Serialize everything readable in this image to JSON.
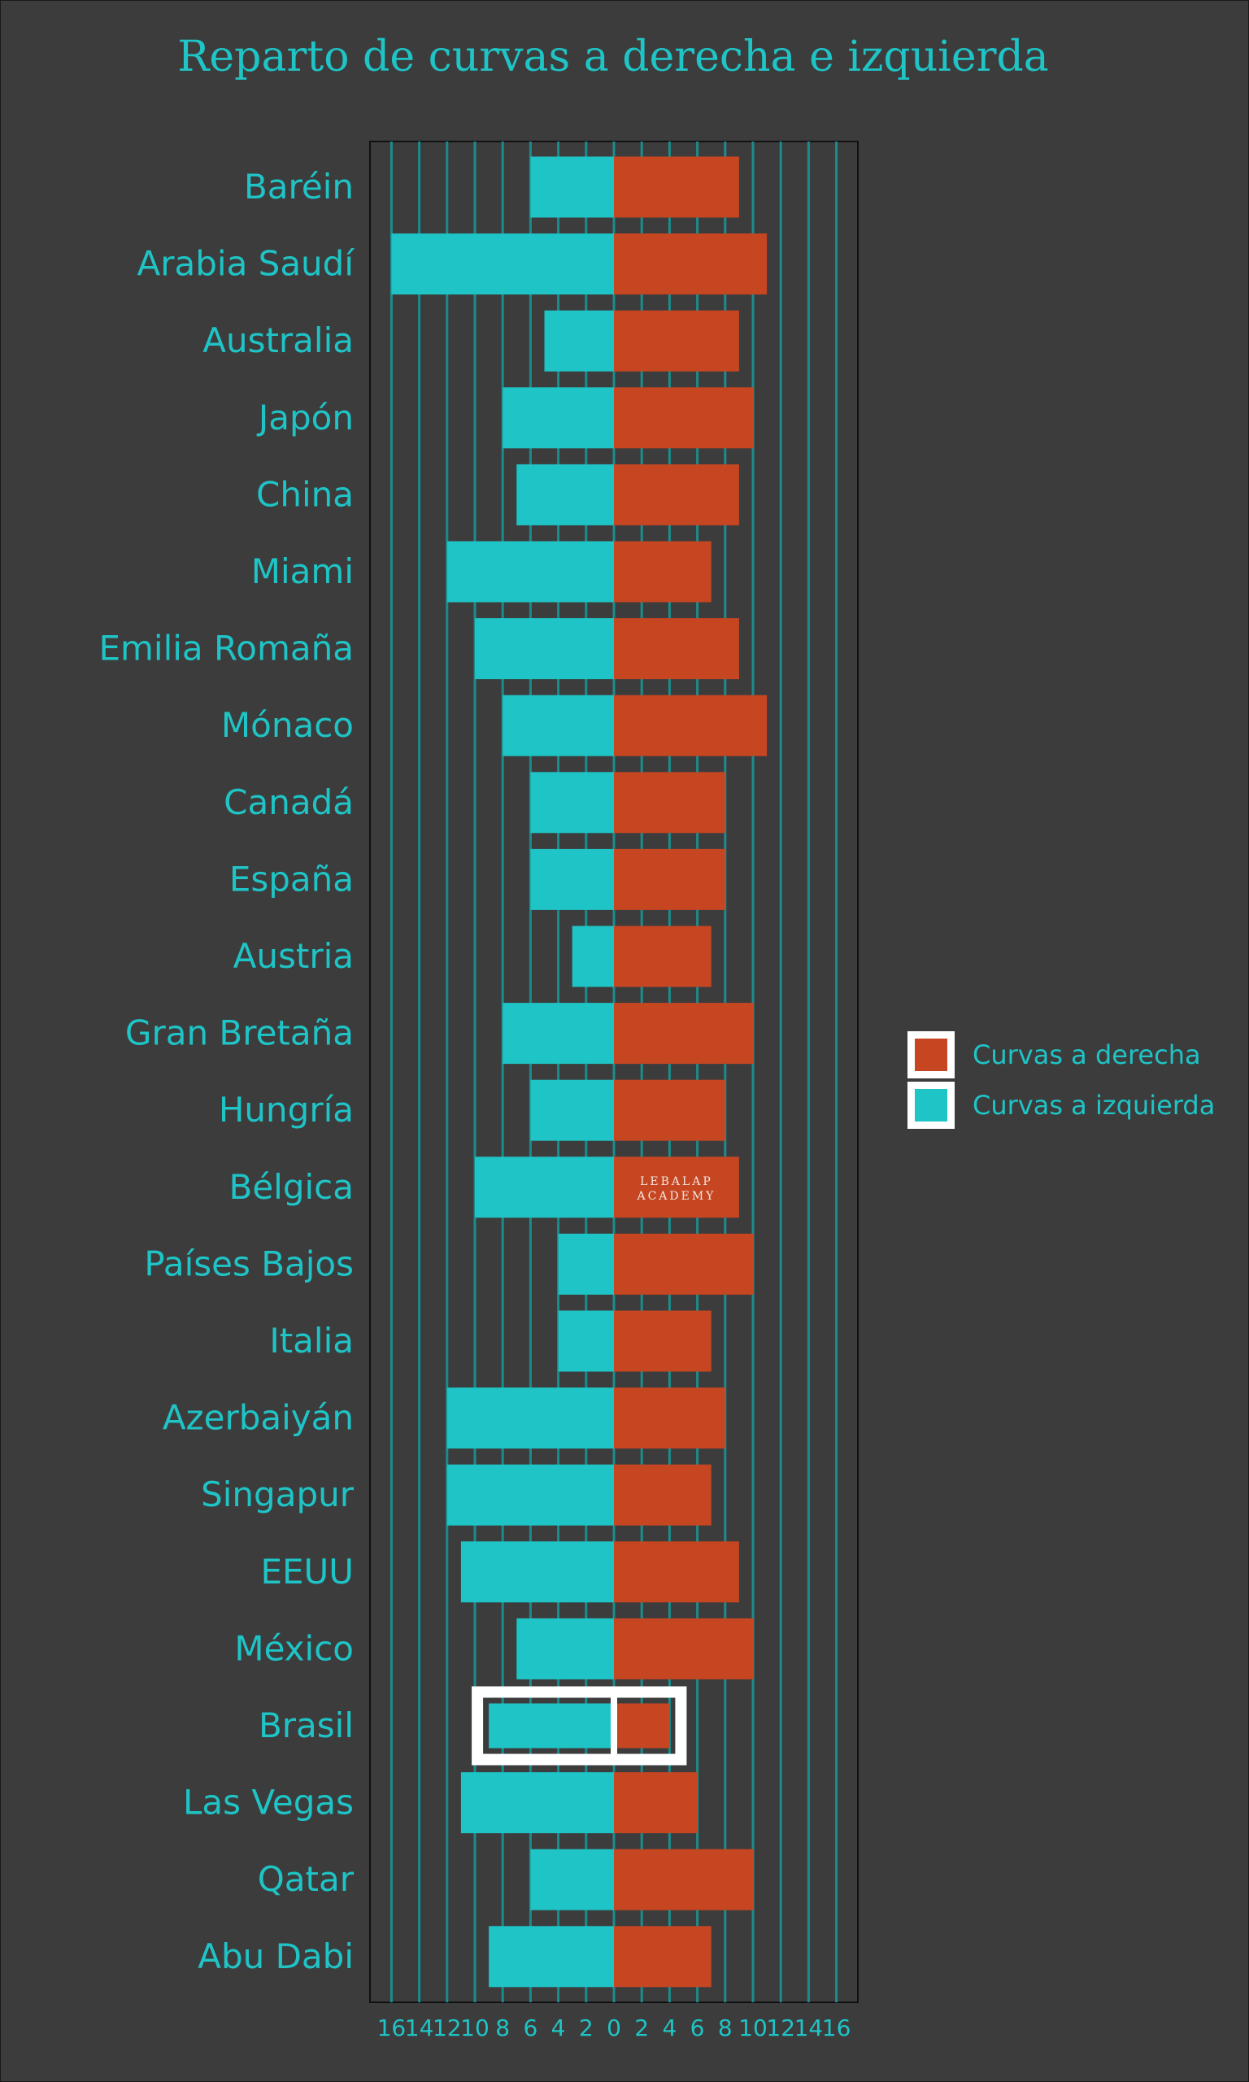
{
  "colors": {
    "background": "#3c3c3c",
    "right": "#c64622",
    "left": "#1fc4c6",
    "text": "#1fc4c6",
    "gridline": "#1b8c8d",
    "highlight": "#ffffff"
  },
  "watermark": [
    "LEBALAP",
    "ACADEMY"
  ],
  "chart_data": {
    "type": "bar",
    "orientation": "horizontal-diverging",
    "title": "Reparto de curvas a derecha e izquierda",
    "xlabel": "",
    "ylabel": "",
    "xlim": [
      -17,
      17
    ],
    "x_ticks": [
      -16,
      -14,
      -12,
      -10,
      -8,
      -6,
      -4,
      -2,
      0,
      2,
      4,
      6,
      8,
      10,
      12,
      14,
      16
    ],
    "x_tick_labels": [
      "16",
      "14",
      "12",
      "10",
      "8",
      "6",
      "4",
      "2",
      "0",
      "2",
      "4",
      "6",
      "8",
      "10",
      "12",
      "14",
      "16"
    ],
    "grid": true,
    "legend_position": "right",
    "categories": [
      "Baréin",
      "Arabia Saudí",
      "Australia",
      "Japón",
      "China",
      "Miami",
      "Emilia Romaña",
      "Mónaco",
      "Canadá",
      "España",
      "Austria",
      "Gran Bretaña",
      "Hungría",
      "Bélgica",
      "Países Bajos",
      "Italia",
      "Azerbaiyán",
      "Singapur",
      "EEUU",
      "México",
      "Brasil",
      "Las Vegas",
      "Qatar",
      "Abu Dabi"
    ],
    "series": [
      {
        "name": "Curvas a derecha",
        "color": "#c64622",
        "values": [
          9,
          11,
          9,
          10,
          9,
          7,
          9,
          11,
          8,
          8,
          7,
          10,
          8,
          9,
          10,
          7,
          8,
          7,
          9,
          10,
          4,
          6,
          10,
          7
        ]
      },
      {
        "name": "Curvas a izquierda",
        "color": "#1fc4c6",
        "values": [
          6,
          16,
          5,
          8,
          7,
          12,
          10,
          8,
          6,
          6,
          3,
          8,
          6,
          10,
          4,
          4,
          12,
          12,
          11,
          7,
          9,
          11,
          6,
          9
        ]
      }
    ],
    "highlighted_category": "Brasil",
    "legend": [
      {
        "label": "Curvas a derecha",
        "color": "#c64622"
      },
      {
        "label": "Curvas a izquierda",
        "color": "#1fc4c6"
      }
    ]
  }
}
